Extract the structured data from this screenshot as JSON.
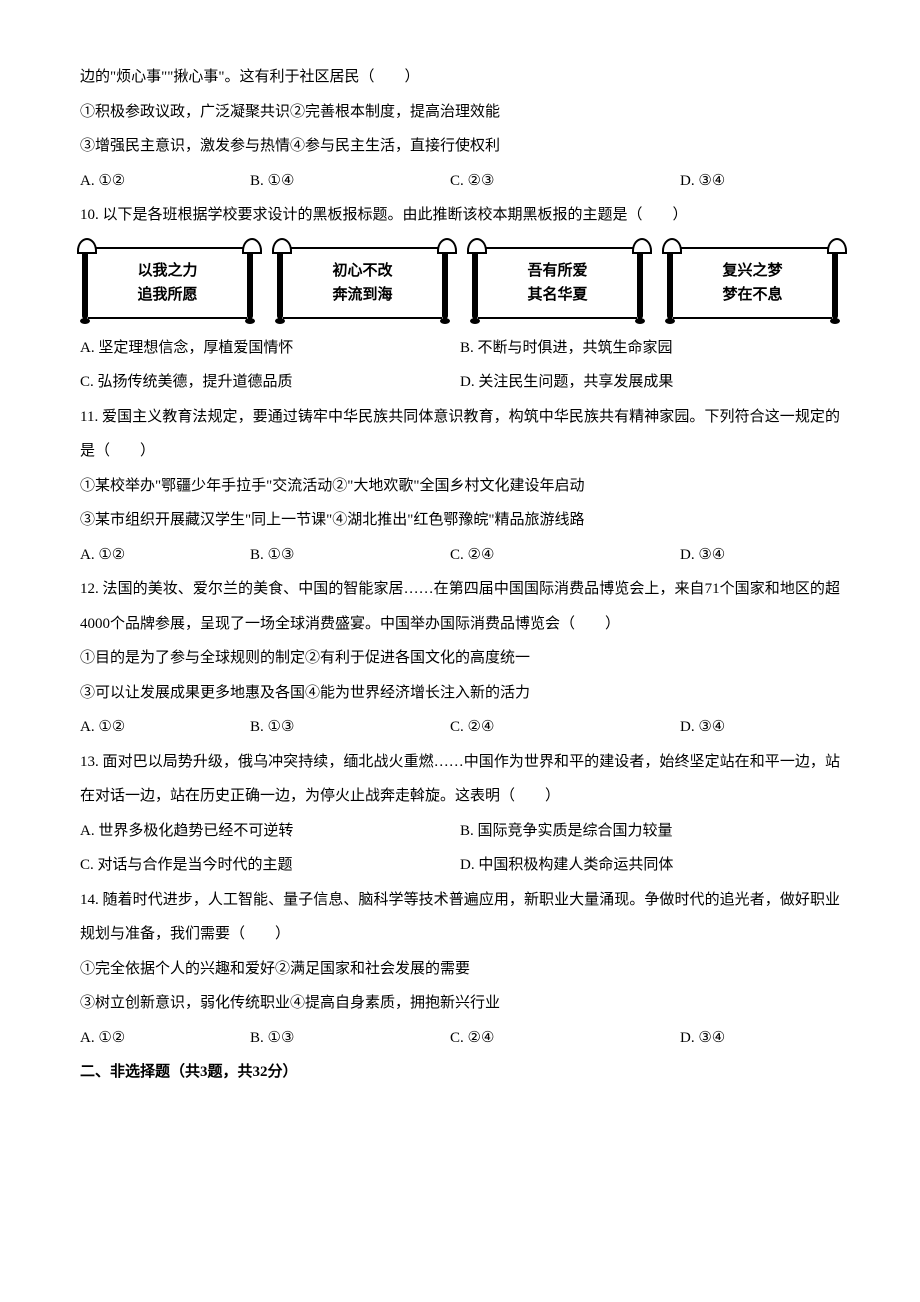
{
  "q9": {
    "tail": "边的\"烦心事\"\"揪心事\"。这有利于社区居民（　　）",
    "s1": "①积极参政议政，广泛凝聚共识②完善根本制度，提高治理效能",
    "s2": "③增强民主意识，激发参与热情④参与民主生活，直接行使权利",
    "optA": "A. ①②",
    "optB": "B. ①④",
    "optC": "C. ②③",
    "optD": "D. ③④"
  },
  "q10": {
    "stem": "10. 以下是各班根据学校要求设计的黑板报标题。由此推断该校本期黑板报的主题是（　　）",
    "scrolls": [
      {
        "l1": "以我之力",
        "l2": "追我所愿"
      },
      {
        "l1": "初心不改",
        "l2": "奔流到海"
      },
      {
        "l1": "吾有所爱",
        "l2": "其名华夏"
      },
      {
        "l1": "复兴之梦",
        "l2": "梦在不息"
      }
    ],
    "optA": "A. 坚定理想信念，厚植爱国情怀",
    "optB": "B. 不断与时俱进，共筑生命家园",
    "optC": "C. 弘扬传统美德，提升道德品质",
    "optD": "D. 关注民生问题，共享发展成果"
  },
  "q11": {
    "stem": "11. 爱国主义教育法规定，要通过铸牢中华民族共同体意识教育，构筑中华民族共有精神家园。下列符合这一规定的是（　　）",
    "s1": "①某校举办\"鄂疆少年手拉手\"交流活动②\"大地欢歌\"全国乡村文化建设年启动",
    "s2": "③某市组织开展藏汉学生\"同上一节课\"④湖北推出\"红色鄂豫皖\"精品旅游线路",
    "optA": "A. ①②",
    "optB": "B. ①③",
    "optC": "C. ②④",
    "optD": "D. ③④"
  },
  "q12": {
    "stem": "12. 法国的美妆、爱尔兰的美食、中国的智能家居……在第四届中国国际消费品博览会上，来自71个国家和地区的超4000个品牌参展，呈现了一场全球消费盛宴。中国举办国际消费品博览会（　　）",
    "s1": "①目的是为了参与全球规则的制定②有利于促进各国文化的高度统一",
    "s2": "③可以让发展成果更多地惠及各国④能为世界经济增长注入新的活力",
    "optA": "A. ①②",
    "optB": "B. ①③",
    "optC": "C. ②④",
    "optD": "D. ③④"
  },
  "q13": {
    "stem": "13. 面对巴以局势升级，俄乌冲突持续，缅北战火重燃……中国作为世界和平的建设者，始终坚定站在和平一边，站在对话一边，站在历史正确一边，为停火止战奔走斡旋。这表明（　　）",
    "optA": "A. 世界多极化趋势已经不可逆转",
    "optB": "B. 国际竞争实质是综合国力较量",
    "optC": "C. 对话与合作是当今时代的主题",
    "optD": "D. 中国积极构建人类命运共同体"
  },
  "q14": {
    "stem": "14. 随着时代进步，人工智能、量子信息、脑科学等技术普遍应用，新职业大量涌现。争做时代的追光者，做好职业规划与准备，我们需要（　　）",
    "s1": "①完全依据个人的兴趣和爱好②满足国家和社会发展的需要",
    "s2": "③树立创新意识，弱化传统职业④提高自身素质，拥抱新兴行业",
    "optA": "A. ①②",
    "optB": "B. ①③",
    "optC": "C. ②④",
    "optD": "D. ③④"
  },
  "section2": "二、非选择题（共3题，共32分）"
}
